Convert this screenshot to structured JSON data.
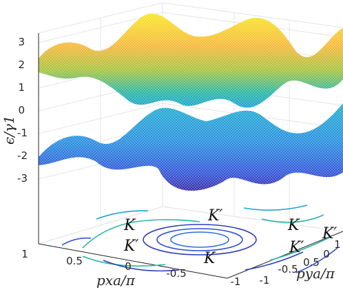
{
  "chart_data": {
    "type": "surface",
    "title": "",
    "zlabel": "ϵ/γ1",
    "xlabel": "pxa/π",
    "ylabel": "pya/π",
    "z_ticks": [
      "3",
      "2",
      "1",
      "0",
      "-1",
      "-2",
      "-3"
    ],
    "x_ticks": [
      "1",
      "0.5",
      "0",
      "-0.5",
      "-1"
    ],
    "y_ticks": [
      "-1",
      "-0.5",
      "0",
      "0.5",
      "1"
    ],
    "zlim": [
      -3,
      3
    ],
    "xlim": [
      -1,
      1
    ],
    "ylim": [
      -1,
      1
    ],
    "grid": true,
    "colormap": "parula",
    "series": [
      {
        "name": "",
        "band": "upper",
        "zrange": [
          0,
          3
        ]
      },
      {
        "name": "",
        "band": "lower",
        "zrange": [
          -3,
          0
        ]
      }
    ],
    "contour_projection": true,
    "annotations": [
      "K",
      "K′",
      "K",
      "K′",
      "K′",
      "K",
      "K′"
    ]
  }
}
